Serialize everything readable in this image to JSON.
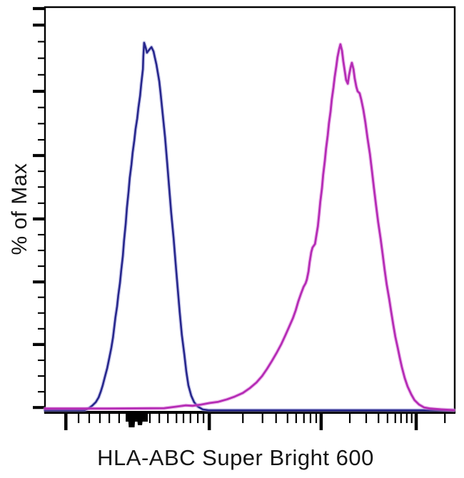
{
  "figure": {
    "background": "#ffffff",
    "text_color": "#141414"
  },
  "chart_data": {
    "type": "line",
    "subtype": "flow-cytometry-overlay-histogram",
    "title": "",
    "xlabel": "HLA-ABC Super Bright 600",
    "ylabel": "% of Max",
    "grid": false,
    "legend": false,
    "plot_border": true,
    "axis_color": "#000000",
    "ylim": [
      0,
      100
    ],
    "x_axis": {
      "scale": "biexponential-log",
      "tick_labels": [],
      "major_ticks": [
        0.051,
        0.401,
        0.674,
        0.906
      ],
      "minor_ticks": [
        0.082,
        0.108,
        0.134,
        0.157,
        0.181,
        0.256,
        0.279,
        0.3,
        0.321,
        0.338,
        0.355,
        0.373,
        0.387,
        0.483,
        0.531,
        0.564,
        0.592,
        0.613,
        0.632,
        0.648,
        0.662,
        0.744,
        0.784,
        0.814,
        0.836,
        0.855,
        0.869,
        0.883,
        0.895,
        0.976
      ],
      "ink_smudge": {
        "x1": 0.197,
        "x2": 0.251
      }
    },
    "y_axis": {
      "tick_labels": [],
      "major_ticks": [
        0.012,
        0.168,
        0.323,
        0.479,
        0.636,
        0.795,
        0.959,
        1.0
      ],
      "minor_ticks": [
        0.051,
        0.09,
        0.129,
        0.207,
        0.246,
        0.285,
        0.362,
        0.401,
        0.44,
        0.518,
        0.558,
        0.597,
        0.675,
        0.715,
        0.755,
        0.836,
        0.877,
        0.918
      ]
    },
    "series": [
      {
        "id": "blue-histogram",
        "color": "#26268c",
        "glow": "#9393d6",
        "stroke_width": 2.6,
        "points": [
          [
            0.0,
            0.0
          ],
          [
            0.096,
            0.0
          ],
          [
            0.106,
            0.4
          ],
          [
            0.115,
            1.1
          ],
          [
            0.124,
            2.0
          ],
          [
            0.131,
            3.2
          ],
          [
            0.136,
            4.6
          ],
          [
            0.141,
            6.2
          ],
          [
            0.146,
            8.2
          ],
          [
            0.152,
            10.5
          ],
          [
            0.157,
            13.0
          ],
          [
            0.162,
            15.6
          ],
          [
            0.166,
            18.1
          ],
          [
            0.169,
            20.6
          ],
          [
            0.172,
            23.1
          ],
          [
            0.176,
            25.8
          ],
          [
            0.179,
            28.6
          ],
          [
            0.183,
            31.6
          ],
          [
            0.186,
            34.8
          ],
          [
            0.19,
            38.4
          ],
          [
            0.193,
            42.3
          ],
          [
            0.197,
            46.4
          ],
          [
            0.2,
            50.4
          ],
          [
            0.204,
            54.4
          ],
          [
            0.207,
            57.9
          ],
          [
            0.211,
            61.1
          ],
          [
            0.214,
            64.1
          ],
          [
            0.218,
            67.1
          ],
          [
            0.221,
            70.0
          ],
          [
            0.225,
            72.6
          ],
          [
            0.228,
            75.3
          ],
          [
            0.232,
            78.2
          ],
          [
            0.235,
            81.3
          ],
          [
            0.239,
            84.9
          ],
          [
            0.24,
            88.1
          ],
          [
            0.242,
            91.5
          ],
          [
            0.246,
            90.2
          ],
          [
            0.249,
            89.0
          ],
          [
            0.254,
            89.7
          ],
          [
            0.26,
            90.4
          ],
          [
            0.265,
            89.3
          ],
          [
            0.268,
            87.9
          ],
          [
            0.272,
            86.1
          ],
          [
            0.275,
            84.2
          ],
          [
            0.279,
            81.9
          ],
          [
            0.282,
            79.0
          ],
          [
            0.287,
            74.1
          ],
          [
            0.293,
            68.0
          ],
          [
            0.298,
            61.8
          ],
          [
            0.303,
            55.6
          ],
          [
            0.308,
            49.2
          ],
          [
            0.314,
            42.8
          ],
          [
            0.319,
            36.4
          ],
          [
            0.324,
            30.2
          ],
          [
            0.329,
            24.3
          ],
          [
            0.334,
            18.8
          ],
          [
            0.34,
            13.9
          ],
          [
            0.345,
            9.6
          ],
          [
            0.35,
            6.2
          ],
          [
            0.357,
            3.6
          ],
          [
            0.364,
            2.0
          ],
          [
            0.373,
            0.9
          ],
          [
            0.385,
            0.2
          ],
          [
            0.399,
            0.0
          ],
          [
            0.998,
            0.0
          ]
        ]
      },
      {
        "id": "magenta-histogram",
        "color": "#b52cb5",
        "glow": "#e08ae0",
        "stroke_width": 2.8,
        "points": [
          [
            0.0,
            0.4
          ],
          [
            0.152,
            0.4
          ],
          [
            0.291,
            0.5
          ],
          [
            0.322,
            0.9
          ],
          [
            0.343,
            1.2
          ],
          [
            0.361,
            1.1
          ],
          [
            0.381,
            1.4
          ],
          [
            0.402,
            1.8
          ],
          [
            0.423,
            2.1
          ],
          [
            0.444,
            2.7
          ],
          [
            0.463,
            3.4
          ],
          [
            0.483,
            4.3
          ],
          [
            0.5,
            5.5
          ],
          [
            0.516,
            6.9
          ],
          [
            0.53,
            8.5
          ],
          [
            0.542,
            10.3
          ],
          [
            0.554,
            12.3
          ],
          [
            0.566,
            14.4
          ],
          [
            0.577,
            16.5
          ],
          [
            0.587,
            18.7
          ],
          [
            0.596,
            20.8
          ],
          [
            0.605,
            22.9
          ],
          [
            0.612,
            24.9
          ],
          [
            0.618,
            27.0
          ],
          [
            0.625,
            29.1
          ],
          [
            0.631,
            30.7
          ],
          [
            0.636,
            31.6
          ],
          [
            0.639,
            32.5
          ],
          [
            0.643,
            34.5
          ],
          [
            0.646,
            36.9
          ],
          [
            0.65,
            39.4
          ],
          [
            0.653,
            40.5
          ],
          [
            0.659,
            41.4
          ],
          [
            0.662,
            43.3
          ],
          [
            0.666,
            45.8
          ],
          [
            0.669,
            48.7
          ],
          [
            0.672,
            51.9
          ],
          [
            0.676,
            55.2
          ],
          [
            0.679,
            58.6
          ],
          [
            0.683,
            62.0
          ],
          [
            0.686,
            65.2
          ],
          [
            0.69,
            68.4
          ],
          [
            0.693,
            71.4
          ],
          [
            0.697,
            74.4
          ],
          [
            0.7,
            77.4
          ],
          [
            0.704,
            80.3
          ],
          [
            0.707,
            82.9
          ],
          [
            0.711,
            85.6
          ],
          [
            0.714,
            87.9
          ],
          [
            0.718,
            89.9
          ],
          [
            0.721,
            91.1
          ],
          [
            0.725,
            89.5
          ],
          [
            0.728,
            86.9
          ],
          [
            0.732,
            84.2
          ],
          [
            0.735,
            82.2
          ],
          [
            0.739,
            81.3
          ],
          [
            0.742,
            83.3
          ],
          [
            0.746,
            85.4
          ],
          [
            0.749,
            86.5
          ],
          [
            0.753,
            84.9
          ],
          [
            0.756,
            82.6
          ],
          [
            0.76,
            80.5
          ],
          [
            0.763,
            79.4
          ],
          [
            0.768,
            78.9
          ],
          [
            0.772,
            77.3
          ],
          [
            0.777,
            74.8
          ],
          [
            0.782,
            71.6
          ],
          [
            0.787,
            67.9
          ],
          [
            0.793,
            63.8
          ],
          [
            0.798,
            59.5
          ],
          [
            0.803,
            55.2
          ],
          [
            0.808,
            51.0
          ],
          [
            0.813,
            46.9
          ],
          [
            0.819,
            42.8
          ],
          [
            0.824,
            38.9
          ],
          [
            0.829,
            35.0
          ],
          [
            0.834,
            31.3
          ],
          [
            0.84,
            27.7
          ],
          [
            0.845,
            24.5
          ],
          [
            0.85,
            21.3
          ],
          [
            0.855,
            18.3
          ],
          [
            0.861,
            15.5
          ],
          [
            0.866,
            13.0
          ],
          [
            0.871,
            10.7
          ],
          [
            0.878,
            8.0
          ],
          [
            0.885,
            5.9
          ],
          [
            0.894,
            3.9
          ],
          [
            0.902,
            2.5
          ],
          [
            0.913,
            1.4
          ],
          [
            0.925,
            0.7
          ],
          [
            0.941,
            0.4
          ],
          [
            0.967,
            0.2
          ],
          [
            0.998,
            0.0
          ]
        ]
      }
    ]
  }
}
